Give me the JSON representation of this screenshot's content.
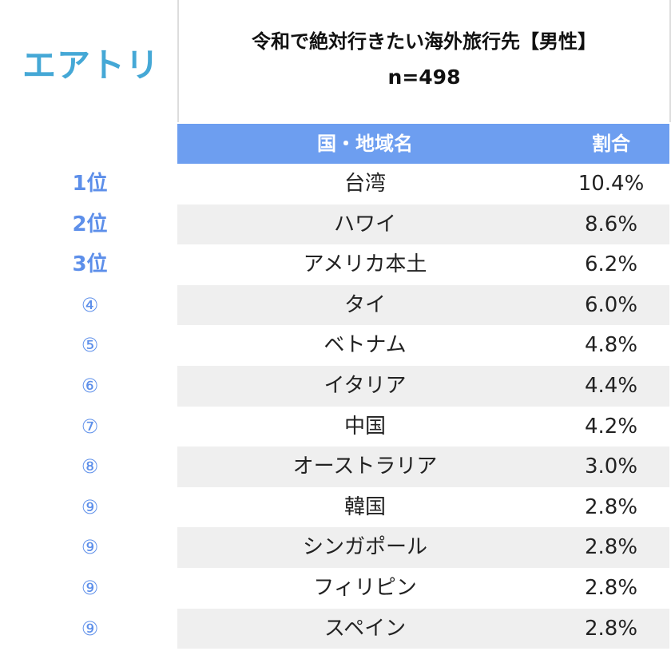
{
  "logo": "エアトリ",
  "header": {
    "title": "令和で絶対行きたい海外旅行先【男性】",
    "subtitle": "n=498"
  },
  "table": {
    "columns": [
      "国・地域名",
      "割合"
    ],
    "rows": [
      [
        "1位",
        "台湾",
        "10.4%"
      ],
      [
        "2位",
        "ハワイ",
        "8.6%"
      ],
      [
        "3位",
        "アメリカ本土",
        "6.2%"
      ],
      [
        "④",
        "タイ",
        "6.0%"
      ],
      [
        "⑤",
        "ベトナム",
        "4.8%"
      ],
      [
        "⑥",
        "イタリア",
        "4.4%"
      ],
      [
        "⑦",
        "中国",
        "4.2%"
      ],
      [
        "⑧",
        "オーストラリア",
        "3.0%"
      ],
      [
        "⑨",
        "韓国",
        "2.8%"
      ],
      [
        "⑨",
        "シンガポール",
        "2.8%"
      ],
      [
        "⑨",
        "フィリピン",
        "2.8%"
      ],
      [
        "⑨",
        "スペイン",
        "2.8%"
      ]
    ]
  }
}
